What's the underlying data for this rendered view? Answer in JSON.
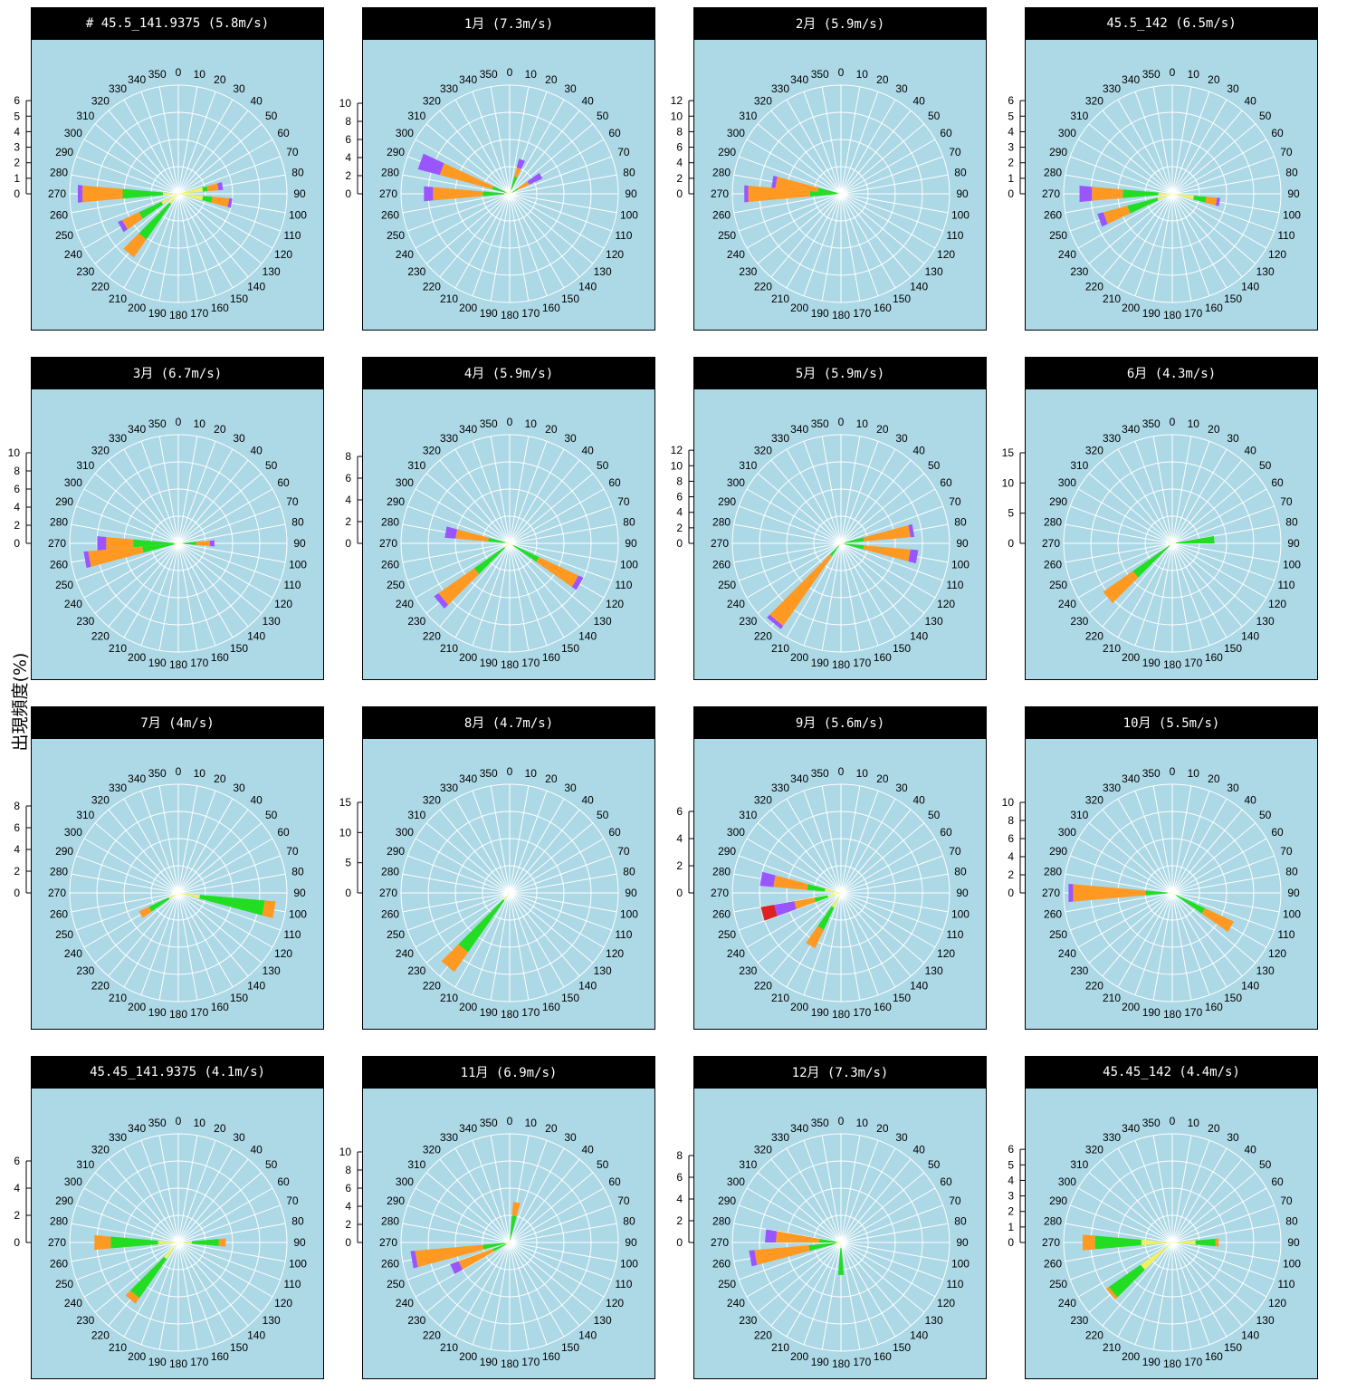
{
  "ylabel": "出現頻度(%)",
  "colors": {
    "speed_0_2": "#f0f060",
    "speed_2_4": "#22dd22",
    "speed_4_8": "#ff9922",
    "speed_8_12": "#9955ff",
    "speed_12p": "#dd2222",
    "panel_bg": "#add8e6",
    "grid": "#ffffff",
    "strip": "#000000"
  },
  "chart_data": [
    {
      "type": "polar-bar",
      "title": "# 45.5_141.9375 (5.8m/s)",
      "yticks": [
        0,
        1,
        2,
        3,
        4,
        5,
        6
      ],
      "rmax": 7,
      "sectors": [
        [
          80,
          1.6,
          1.9,
          2.6,
          2.9,
          0
        ],
        [
          100,
          1.6,
          2.2,
          3.3,
          3.5,
          0
        ],
        [
          240,
          1.2,
          2.8,
          4.0,
          4.3,
          0
        ],
        [
          270,
          1.0,
          3.6,
          6.2,
          6.5,
          0
        ],
        [
          220,
          0.8,
          3.6,
          5.0,
          5.0,
          0
        ]
      ]
    },
    {
      "type": "polar-bar",
      "title": "1月 (7.3m/s)",
      "yticks": [
        0,
        2,
        4,
        6,
        8,
        10
      ],
      "rmax": 12,
      "sectors": [
        [
          20,
          0.5,
          2.0,
          3.0,
          4.0,
          0
        ],
        [
          270,
          0.6,
          3.0,
          8.5,
          9.5,
          0
        ],
        [
          290,
          0.4,
          2.0,
          8.0,
          10.5,
          0
        ],
        [
          60,
          0.3,
          1.0,
          2.4,
          4.0,
          0
        ]
      ]
    },
    {
      "type": "polar-bar",
      "title": "2月 (5.9m/s)",
      "yticks": [
        0,
        2,
        4,
        6,
        8,
        10,
        12
      ],
      "rmax": 14,
      "sectors": [
        [
          270,
          0.5,
          4.0,
          12.0,
          12.5,
          0
        ],
        [
          280,
          0.4,
          3.0,
          8.5,
          9.0,
          0
        ]
      ]
    },
    {
      "type": "polar-bar",
      "title": "45.5_142 (6.5m/s)",
      "yticks": [
        0,
        1,
        2,
        3,
        4,
        5,
        6
      ],
      "rmax": 7,
      "sectors": [
        [
          100,
          1.4,
          2.2,
          2.9,
          3.1,
          0
        ],
        [
          250,
          1.0,
          3.0,
          4.6,
          5.0,
          0
        ],
        [
          270,
          0.9,
          3.2,
          5.2,
          6.0,
          0
        ]
      ]
    },
    {
      "type": "polar-bar",
      "title": "3月 (6.7m/s)",
      "yticks": [
        0,
        2,
        4,
        6,
        8,
        10
      ],
      "rmax": 12,
      "sectors": [
        [
          270,
          0.5,
          5.0,
          8.0,
          9.0,
          0
        ],
        [
          260,
          0.4,
          4.0,
          10.0,
          10.5,
          0
        ],
        [
          90,
          0.5,
          2.0,
          3.5,
          4.0,
          0
        ]
      ]
    },
    {
      "type": "polar-bar",
      "title": "4月 (5.9m/s)",
      "yticks": [
        0,
        2,
        4,
        6,
        8
      ],
      "rmax": 10,
      "sectors": [
        [
          230,
          0.6,
          4.0,
          8.0,
          8.5,
          0
        ],
        [
          120,
          0.4,
          3.0,
          7.0,
          7.5,
          0
        ],
        [
          280,
          0.4,
          2.0,
          5.0,
          6.0,
          0
        ]
      ]
    },
    {
      "type": "polar-bar",
      "title": "5月 (5.9m/s)",
      "yticks": [
        0,
        2,
        4,
        6,
        8,
        10,
        12
      ],
      "rmax": 14,
      "sectors": [
        [
          220,
          0.4,
          2.0,
          13.0,
          13.5,
          0
        ],
        [
          80,
          0.5,
          3.0,
          9.0,
          9.5,
          0
        ],
        [
          100,
          0.5,
          3.0,
          9.0,
          10.0,
          0
        ]
      ]
    },
    {
      "type": "polar-bar",
      "title": "6月 (4.3m/s)",
      "yticks": [
        0,
        5,
        10,
        15
      ],
      "rmax": 18,
      "sectors": [
        [
          230,
          0.6,
          8.0,
          14.0,
          14.0,
          0
        ],
        [
          85,
          0.6,
          7.0,
          7.0,
          7.0,
          0
        ]
      ]
    },
    {
      "type": "polar-bar",
      "title": "7月 (4m/s)",
      "yticks": [
        0,
        2,
        4,
        6,
        8
      ],
      "rmax": 10,
      "sectors": [
        [
          100,
          2.0,
          8.0,
          9.0,
          9.0,
          0
        ],
        [
          240,
          1.0,
          3.0,
          4.0,
          4.0,
          0
        ]
      ]
    },
    {
      "type": "polar-bar",
      "title": "8月 (4.7m/s)",
      "yticks": [
        0,
        5,
        10,
        15
      ],
      "rmax": 18,
      "sectors": [
        [
          220,
          1.5,
          12.0,
          16.0,
          16.0,
          0
        ]
      ]
    },
    {
      "type": "polar-bar",
      "title": "9月 (5.6m/s)",
      "yticks": [
        0,
        2,
        4,
        6
      ],
      "rmax": 8,
      "sectors": [
        [
          280,
          1.2,
          2.5,
          5.0,
          6.0,
          0
        ],
        [
          255,
          1.0,
          2.0,
          3.5,
          5.0,
          6.0
        ],
        [
          210,
          1.2,
          3.0,
          4.5,
          4.5,
          0
        ]
      ]
    },
    {
      "type": "polar-bar",
      "title": "10月 (5.5m/s)",
      "yticks": [
        0,
        2,
        4,
        6,
        8,
        10
      ],
      "rmax": 12,
      "sectors": [
        [
          270,
          0.5,
          3.0,
          11.0,
          11.5,
          0
        ],
        [
          120,
          0.5,
          4.0,
          7.5,
          7.5,
          0
        ]
      ]
    },
    {
      "type": "polar-bar",
      "title": "45.45_141.9375 (4.1m/s)",
      "yticks": [
        0,
        2,
        4,
        6
      ],
      "rmax": 8,
      "sectors": [
        [
          220,
          1.5,
          5.0,
          5.5,
          5.5,
          0
        ],
        [
          270,
          1.5,
          5.0,
          6.2,
          6.2,
          0
        ],
        [
          90,
          1.0,
          3.0,
          3.5,
          3.5,
          0
        ]
      ]
    },
    {
      "type": "polar-bar",
      "title": "11月 (6.9m/s)",
      "yticks": [
        0,
        2,
        4,
        6,
        8,
        10
      ],
      "rmax": 12,
      "sectors": [
        [
          260,
          0.5,
          3.0,
          10.5,
          11.0,
          0
        ],
        [
          245,
          0.4,
          2.0,
          6.0,
          7.0,
          0
        ],
        [
          10,
          0.3,
          3.0,
          4.5,
          4.5,
          0
        ]
      ]
    },
    {
      "type": "polar-bar",
      "title": "12月 (7.3m/s)",
      "yticks": [
        0,
        2,
        4,
        6,
        8
      ],
      "rmax": 10,
      "sectors": [
        [
          260,
          0.5,
          3.0,
          8.0,
          8.5,
          0
        ],
        [
          275,
          0.4,
          2.0,
          6.0,
          7.0,
          0
        ],
        [
          180,
          0.5,
          3.0,
          3.0,
          3.0,
          0
        ]
      ]
    },
    {
      "type": "polar-bar",
      "title": "45.45_142 (4.4m/s)",
      "yticks": [
        0,
        1,
        2,
        3,
        4,
        5,
        6
      ],
      "rmax": 7,
      "sectors": [
        [
          230,
          2.5,
          5.0,
          5.2,
          5.2,
          0
        ],
        [
          270,
          2.0,
          5.0,
          5.8,
          5.8,
          0
        ],
        [
          90,
          1.5,
          2.8,
          3.0,
          3.0,
          0
        ]
      ]
    }
  ]
}
